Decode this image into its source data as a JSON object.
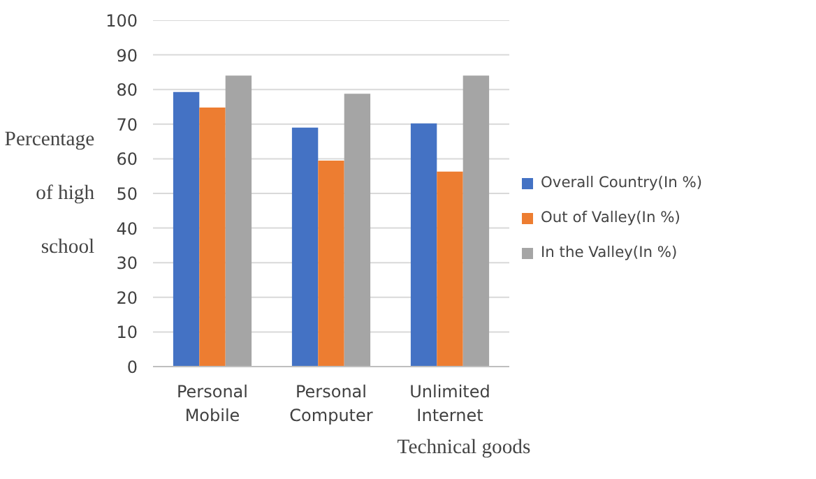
{
  "chart_data": {
    "type": "bar",
    "xlabel": "Technical goods",
    "ylabel": "Percentage of high school",
    "categories": [
      "Personal Mobile",
      "Personal Computer",
      "Unlimited Internet"
    ],
    "series": [
      {
        "name": "Overall Country(In %)",
        "color": "#4472c4",
        "values": [
          79.3,
          69,
          70.2
        ]
      },
      {
        "name": "Out of Valley(In %)",
        "color": "#ed7d31",
        "values": [
          74.8,
          59.5,
          56.3
        ]
      },
      {
        "name": "In the Valley(In %)",
        "color": "#a5a5a5",
        "values": [
          84,
          78.8,
          84
        ]
      }
    ],
    "ylim": [
      0,
      100
    ],
    "yticks": [
      0,
      10,
      20,
      30,
      40,
      50,
      60,
      70,
      80,
      90,
      100
    ],
    "grid": "y",
    "legend": "right"
  }
}
